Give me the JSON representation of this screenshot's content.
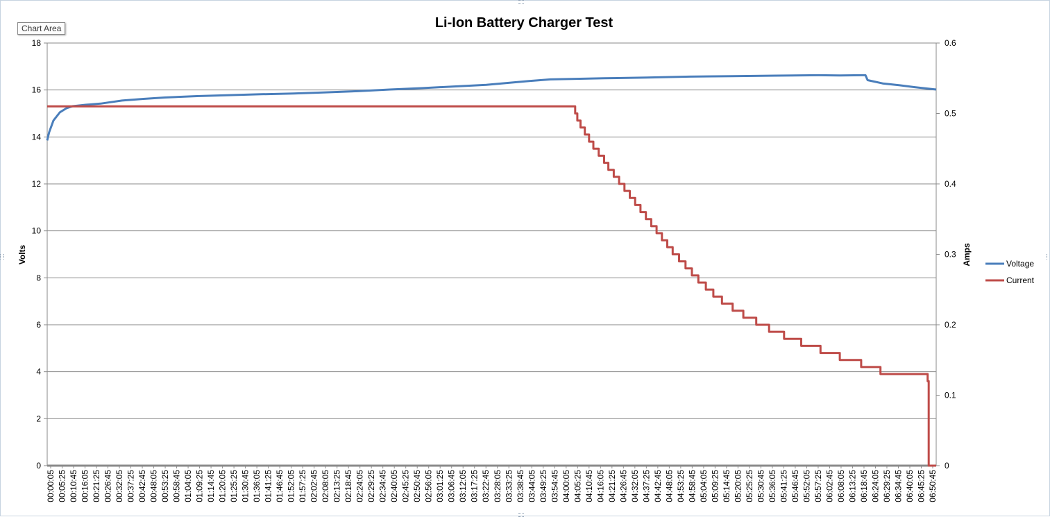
{
  "chart_area_label": "Chart Area",
  "chart_data": {
    "type": "line",
    "title": "Li-Ion Battery Charger Test",
    "ylabel": "Volts",
    "y2label": "Amps",
    "ylim": [
      0,
      18
    ],
    "y2lim": [
      0,
      0.6
    ],
    "yticks": [
      "0",
      "2",
      "4",
      "6",
      "8",
      "10",
      "12",
      "14",
      "16",
      "18"
    ],
    "y2ticks": [
      "0",
      "0.1",
      "0.2",
      "0.3",
      "0.4",
      "0.5",
      "0.6"
    ],
    "xlim_minutes": [
      0.0833,
      415
    ],
    "xticks": [
      "00:00:05",
      "00:05:25",
      "00:10:45",
      "00:16:05",
      "00:21:25",
      "00:26:45",
      "00:32:05",
      "00:37:25",
      "00:42:45",
      "00:48:05",
      "00:53:25",
      "00:58:45",
      "01:04:05",
      "01:09:25",
      "01:14:45",
      "01:20:05",
      "01:25:25",
      "01:30:45",
      "01:36:05",
      "01:41:25",
      "01:46:45",
      "01:52:05",
      "01:57:25",
      "02:02:45",
      "02:08:05",
      "02:13:25",
      "02:18:45",
      "02:24:05",
      "02:29:25",
      "02:34:45",
      "02:40:05",
      "02:45:25",
      "02:50:45",
      "02:56:05",
      "03:01:25",
      "03:06:45",
      "03:12:05",
      "03:17:25",
      "03:22:45",
      "03:28:05",
      "03:33:25",
      "03:38:45",
      "03:44:05",
      "03:49:25",
      "03:54:45",
      "04:00:05",
      "04:05:25",
      "04:10:45",
      "04:16:05",
      "04:21:25",
      "04:26:45",
      "04:32:05",
      "04:37:25",
      "04:42:45",
      "04:48:05",
      "04:53:25",
      "04:58:45",
      "05:04:05",
      "05:09:25",
      "05:14:45",
      "05:20:05",
      "05:25:25",
      "05:30:45",
      "05:36:05",
      "05:41:25",
      "05:46:45",
      "05:52:05",
      "05:57:25",
      "06:02:45",
      "06:08:05",
      "06:13:25",
      "06:18:45",
      "06:24:05",
      "06:29:25",
      "06:34:45",
      "06:40:05",
      "06:45:25",
      "06:50:45"
    ],
    "grid": true,
    "legend_position": "right",
    "series": [
      {
        "name": "Voltage",
        "axis": "left",
        "color": "#4a7ebb",
        "points": [
          [
            0.0833,
            13.85
          ],
          [
            1,
            14.2
          ],
          [
            3,
            14.7
          ],
          [
            6,
            15.05
          ],
          [
            9,
            15.22
          ],
          [
            12,
            15.31
          ],
          [
            18,
            15.37
          ],
          [
            25,
            15.42
          ],
          [
            35,
            15.55
          ],
          [
            45,
            15.62
          ],
          [
            55,
            15.68
          ],
          [
            70,
            15.74
          ],
          [
            85,
            15.78
          ],
          [
            100,
            15.82
          ],
          [
            115,
            15.85
          ],
          [
            130,
            15.9
          ],
          [
            145,
            15.95
          ],
          [
            160,
            16.02
          ],
          [
            175,
            16.08
          ],
          [
            190,
            16.15
          ],
          [
            205,
            16.22
          ],
          [
            215,
            16.3
          ],
          [
            225,
            16.38
          ],
          [
            235,
            16.45
          ],
          [
            245,
            16.47
          ],
          [
            260,
            16.5
          ],
          [
            280,
            16.53
          ],
          [
            300,
            16.57
          ],
          [
            320,
            16.59
          ],
          [
            340,
            16.61
          ],
          [
            360,
            16.63
          ],
          [
            370,
            16.62
          ],
          [
            380,
            16.63
          ],
          [
            382,
            16.63
          ],
          [
            383,
            16.42
          ],
          [
            386,
            16.36
          ],
          [
            390,
            16.28
          ],
          [
            398,
            16.2
          ],
          [
            405,
            16.12
          ],
          [
            415,
            16.02
          ]
        ]
      },
      {
        "name": "Current",
        "axis": "right",
        "color": "#be4b48",
        "points": [
          [
            0.0833,
            0.51
          ],
          [
            246,
            0.51
          ],
          [
            246.5,
            0.5
          ],
          [
            247.5,
            0.49
          ],
          [
            249,
            0.48
          ],
          [
            251,
            0.47
          ],
          [
            253,
            0.46
          ],
          [
            255,
            0.45
          ],
          [
            257.5,
            0.44
          ],
          [
            260,
            0.43
          ],
          [
            262,
            0.42
          ],
          [
            264.5,
            0.41
          ],
          [
            267,
            0.4
          ],
          [
            269.5,
            0.39
          ],
          [
            272,
            0.38
          ],
          [
            274.5,
            0.37
          ],
          [
            277,
            0.36
          ],
          [
            279.5,
            0.35
          ],
          [
            282,
            0.34
          ],
          [
            284.5,
            0.33
          ],
          [
            287,
            0.32
          ],
          [
            289.5,
            0.31
          ],
          [
            292,
            0.3
          ],
          [
            295,
            0.29
          ],
          [
            298,
            0.28
          ],
          [
            301,
            0.27
          ],
          [
            304,
            0.26
          ],
          [
            307.5,
            0.25
          ],
          [
            311,
            0.24
          ],
          [
            315,
            0.23
          ],
          [
            320,
            0.22
          ],
          [
            325,
            0.21
          ],
          [
            331,
            0.2
          ],
          [
            337,
            0.19
          ],
          [
            344,
            0.18
          ],
          [
            352,
            0.17
          ],
          [
            361,
            0.16
          ],
          [
            370,
            0.15
          ],
          [
            380,
            0.14
          ],
          [
            389,
            0.13
          ],
          [
            410,
            0.13
          ],
          [
            411,
            0.12
          ],
          [
            411.5,
            0.0
          ],
          [
            415,
            0.0
          ]
        ]
      }
    ]
  }
}
